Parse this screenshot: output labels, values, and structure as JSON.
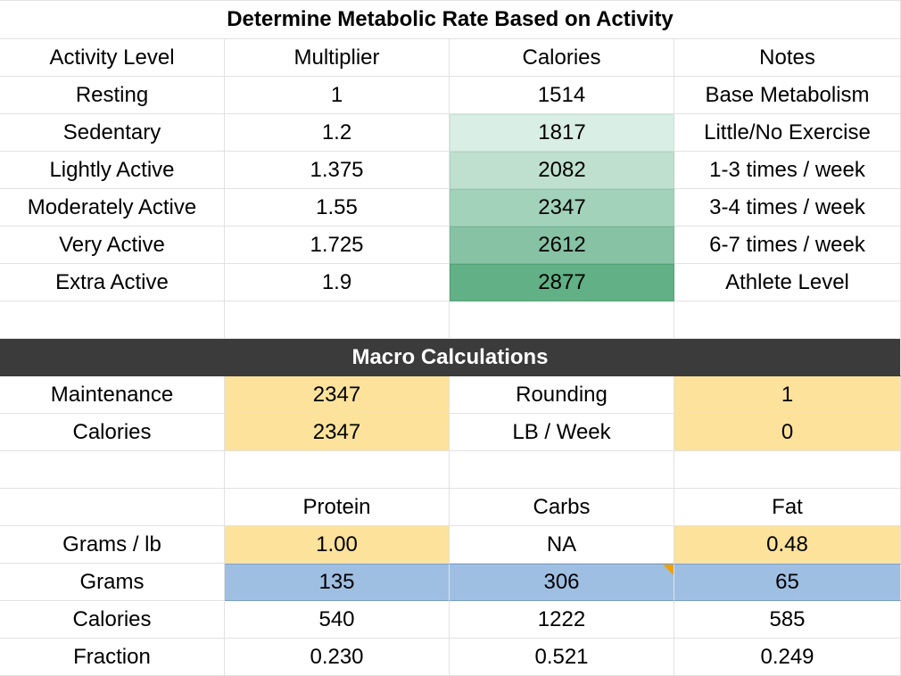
{
  "section1": {
    "title": "Determine Metabolic Rate Based on Activity",
    "headers": [
      "Activity Level",
      "Multiplier",
      "Calories",
      "Notes"
    ],
    "rows": [
      {
        "level": "Resting",
        "multiplier": "1",
        "calories": "1514",
        "notes": "Base Metabolism"
      },
      {
        "level": "Sedentary",
        "multiplier": "1.2",
        "calories": "1817",
        "notes": "Little/No Exercise"
      },
      {
        "level": "Lightly Active",
        "multiplier": "1.375",
        "calories": "2082",
        "notes": "1-3 times / week"
      },
      {
        "level": "Moderately Active",
        "multiplier": "1.55",
        "calories": "2347",
        "notes": "3-4 times / week"
      },
      {
        "level": "Very Active",
        "multiplier": "1.725",
        "calories": "2612",
        "notes": "6-7 times / week"
      },
      {
        "level": "Extra Active",
        "multiplier": "1.9",
        "calories": "2877",
        "notes": "Athlete Level"
      }
    ]
  },
  "section2": {
    "title": "Macro Calculations",
    "maintenance": {
      "label": "Maintenance",
      "value": "2347",
      "option_label": "Rounding",
      "option_value": "1"
    },
    "calories": {
      "label": "Calories",
      "value": "2347",
      "option_label": "LB / Week",
      "option_value": "0"
    },
    "macro_headers": [
      "Protein",
      "Carbs",
      "Fat"
    ],
    "grams_per_lb": {
      "label": "Grams / lb",
      "values": [
        "1.00",
        "NA",
        "0.48"
      ]
    },
    "grams": {
      "label": "Grams",
      "values": [
        "135",
        "306",
        "65"
      ]
    },
    "macro_calories": {
      "label": "Calories",
      "values": [
        "540",
        "1222",
        "585"
      ]
    },
    "fraction": {
      "label": "Fraction",
      "values": [
        "0.230",
        "0.521",
        "0.249"
      ]
    }
  },
  "colors": {
    "header_dark": "#3b3b3b",
    "input_yellow": "#fce29b",
    "output_blue": "#9fbfe2",
    "note_flag": "#f0a000"
  }
}
